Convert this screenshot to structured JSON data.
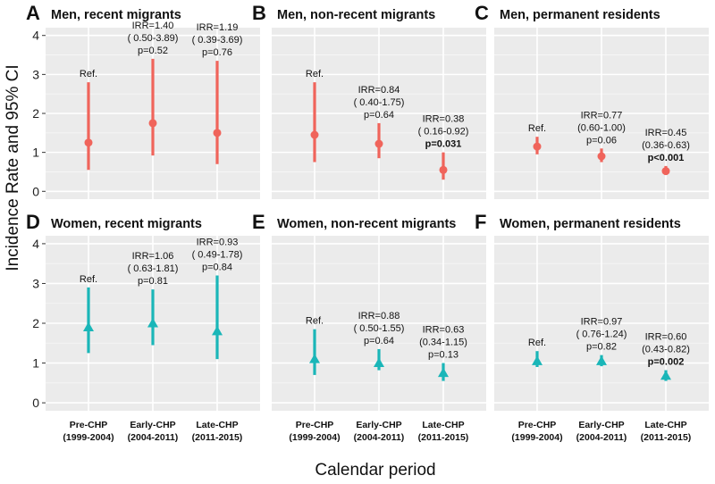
{
  "chart_data": {
    "type": "errorbar-faceted",
    "y_axis_title": "Incidence Rate and 95% CI",
    "x_axis_title": "Calendar period",
    "ylim": [
      -0.2,
      4.2
    ],
    "yticks": [
      0,
      1,
      2,
      3,
      4
    ],
    "categories": [
      {
        "line1": "Pre-CHP",
        "line2": "(1999-2004)"
      },
      {
        "line1": "Early-CHP",
        "line2": "(2004-2011)"
      },
      {
        "line1": "Late-CHP",
        "line2": "(2011-2015)"
      }
    ],
    "colors": {
      "men": "#f0645b",
      "women": "#1ab6b8"
    },
    "panels": [
      {
        "letter": "A",
        "title": "Men, recent migrants",
        "group": "men",
        "marker": "circle",
        "points": [
          {
            "value": 1.25,
            "lower": 0.55,
            "upper": 2.8,
            "labels": [
              "Ref."
            ]
          },
          {
            "value": 1.75,
            "lower": 0.92,
            "upper": 3.4,
            "labels": [
              "IRR=1.40",
              "( 0.50-3.89)",
              "p=0.52"
            ]
          },
          {
            "value": 1.5,
            "lower": 0.7,
            "upper": 3.35,
            "labels": [
              "IRR=1.19",
              "( 0.39-3.69)",
              "p=0.76"
            ]
          }
        ]
      },
      {
        "letter": "B",
        "title": "Men, non-recent migrants",
        "group": "men",
        "marker": "circle",
        "points": [
          {
            "value": 1.45,
            "lower": 0.75,
            "upper": 2.8,
            "labels": [
              "Ref."
            ]
          },
          {
            "value": 1.22,
            "lower": 0.85,
            "upper": 1.75,
            "labels": [
              "IRR=0.84",
              "( 0.40-1.75)",
              "p=0.64"
            ]
          },
          {
            "value": 0.55,
            "lower": 0.3,
            "upper": 1.0,
            "labels": [
              "IRR=0.38",
              "( 0.16-0.92)",
              "p=0.031"
            ],
            "bold_last": true
          }
        ]
      },
      {
        "letter": "C",
        "title": "Men, permanent residents",
        "group": "men",
        "marker": "circle",
        "points": [
          {
            "value": 1.15,
            "lower": 0.95,
            "upper": 1.4,
            "labels": [
              "Ref."
            ]
          },
          {
            "value": 0.9,
            "lower": 0.75,
            "upper": 1.1,
            "labels": [
              "IRR=0.77",
              "(0.60-1.00)",
              "p=0.06"
            ]
          },
          {
            "value": 0.52,
            "lower": 0.42,
            "upper": 0.65,
            "labels": [
              "IRR=0.45",
              "(0.36-0.63)",
              "p<0.001"
            ],
            "bold_last": true
          }
        ]
      },
      {
        "letter": "D",
        "title": "Women, recent migrants",
        "group": "women",
        "marker": "triangle",
        "points": [
          {
            "value": 1.9,
            "lower": 1.25,
            "upper": 2.9,
            "labels": [
              "Ref."
            ]
          },
          {
            "value": 2.0,
            "lower": 1.45,
            "upper": 2.85,
            "labels": [
              "IRR=1.06",
              "( 0.63-1.81)",
              "p=0.81"
            ]
          },
          {
            "value": 1.8,
            "lower": 1.1,
            "upper": 3.2,
            "labels": [
              "IRR=0.93",
              "( 0.49-1.78)",
              "p=0.84"
            ]
          }
        ]
      },
      {
        "letter": "E",
        "title": "Women, non-recent migrants",
        "group": "women",
        "marker": "triangle",
        "points": [
          {
            "value": 1.1,
            "lower": 0.7,
            "upper": 1.85,
            "labels": [
              "Ref."
            ]
          },
          {
            "value": 1.0,
            "lower": 0.82,
            "upper": 1.35,
            "labels": [
              "IRR=0.88",
              "( 0.50-1.55)",
              "p=0.64"
            ]
          },
          {
            "value": 0.75,
            "lower": 0.55,
            "upper": 1.0,
            "labels": [
              "IRR=0.63",
              "(0.34-1.15)",
              "p=0.13"
            ]
          }
        ]
      },
      {
        "letter": "F",
        "title": "Women, permanent residents",
        "group": "women",
        "marker": "triangle",
        "points": [
          {
            "value": 1.05,
            "lower": 0.9,
            "upper": 1.3,
            "labels": [
              "Ref."
            ]
          },
          {
            "value": 1.05,
            "lower": 0.92,
            "upper": 1.2,
            "labels": [
              "IRR=0.97",
              "( 0.76-1.24)",
              "p=0.82"
            ]
          },
          {
            "value": 0.68,
            "lower": 0.55,
            "upper": 0.82,
            "labels": [
              "IRR=0.60",
              "(0.43-0.82)",
              "p=0.002"
            ],
            "bold_last": true
          }
        ]
      }
    ]
  }
}
